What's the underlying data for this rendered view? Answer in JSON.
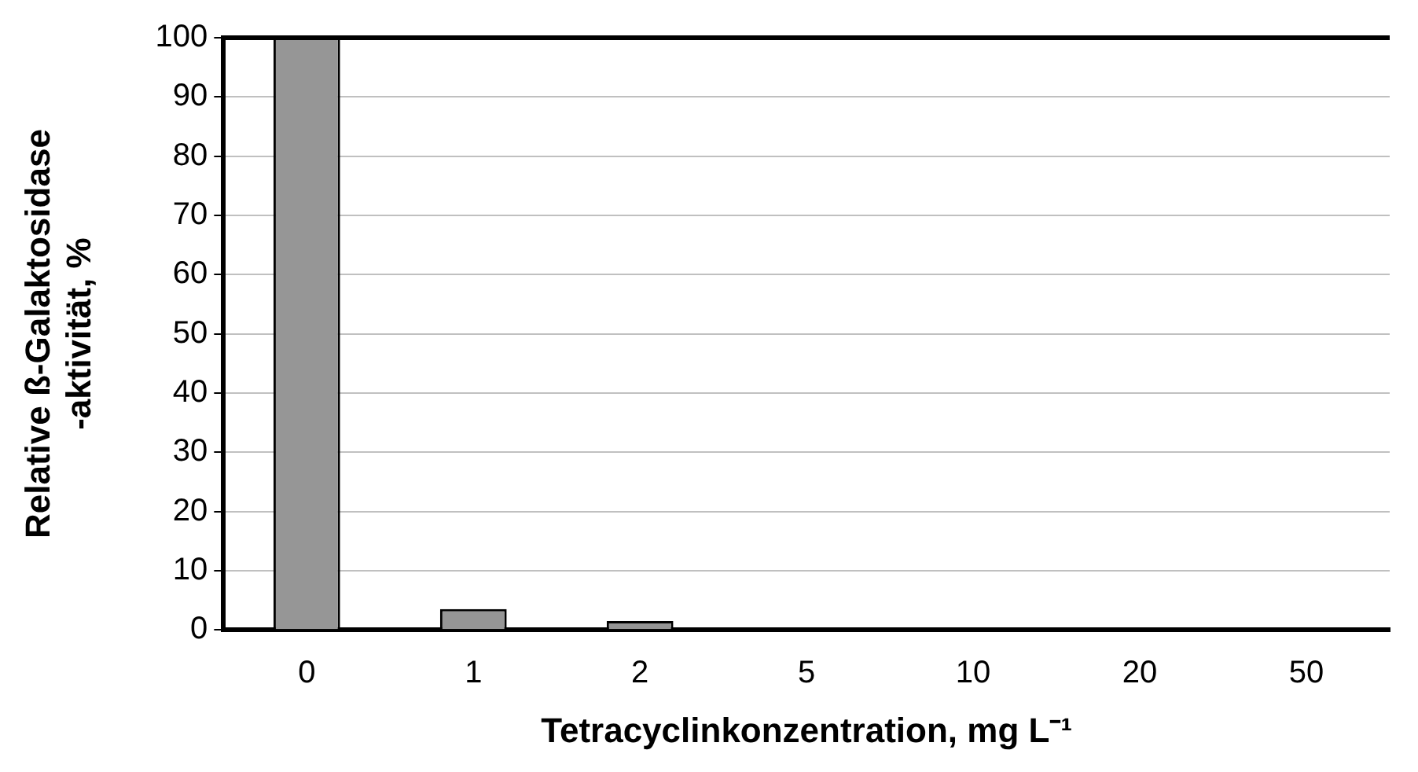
{
  "chart_data": {
    "type": "bar",
    "xlabel": "Tetracyclinkonzentration, mg L⁻¹",
    "ylabel": "Relative ß-Galaktosidase\n-aktivität, %",
    "categories": [
      "0",
      "1",
      "2",
      "5",
      "10",
      "20",
      "50"
    ],
    "values": [
      100,
      3.5,
      1.5,
      0,
      0,
      0,
      0
    ],
    "color": "#969696",
    "ylim": [
      0,
      100
    ],
    "yticks": [
      0,
      10,
      20,
      30,
      40,
      50,
      60,
      70,
      80,
      90,
      100
    ],
    "grid": "y",
    "legend": false
  }
}
